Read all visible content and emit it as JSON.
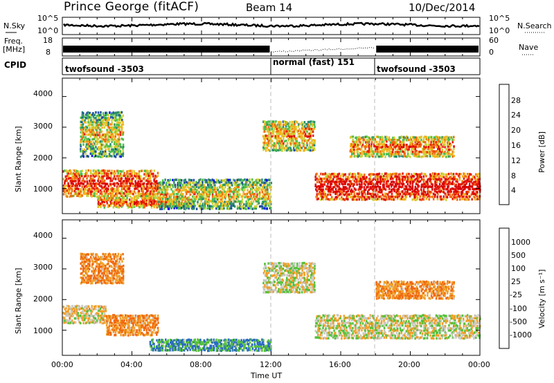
{
  "header": {
    "station": "Prince George (fitACF)",
    "beam": "Beam 14",
    "date": "10/Dec/2014"
  },
  "top_panels": {
    "nsky_label": "N.Sky",
    "nsky_ticks": [
      "10^5",
      "10^0"
    ],
    "nsearch_label": "N.Search",
    "nsearch_ticks": [
      "10^5",
      "10^0"
    ],
    "freq_label_top": "Freq.",
    "freq_label_unit": "[MHz]",
    "freq_ticks": [
      "18",
      "8"
    ],
    "nave_label": "Nave",
    "nave_ticks": [
      "60",
      "0"
    ],
    "cpid_label": "CPID",
    "cpid_segments": [
      {
        "name": "twofsound -3503",
        "start_hour": 0,
        "end_hour": 12
      },
      {
        "name": "normal (fast) 151",
        "start_hour": 12,
        "end_hour": 18
      },
      {
        "name": "twofsound -3503",
        "start_hour": 18,
        "end_hour": 24
      }
    ]
  },
  "power_panel": {
    "ylabel": "Slant Range [km]",
    "yticks": [
      "4000",
      "3000",
      "2000",
      "1000"
    ],
    "colorbar_label": "Power [dB]",
    "colorbar_ticks": [
      "28",
      "24",
      "20",
      "16",
      "12",
      "8",
      "4"
    ],
    "colors": [
      "#0000ff",
      "#1f4ea0",
      "#2e8a6e",
      "#4dbf4d",
      "#c9d23a",
      "#f4b21a",
      "#f06a10",
      "#e81c0c",
      "#d80000"
    ]
  },
  "velocity_panel": {
    "ylabel": "Slant Range [km]",
    "yticks": [
      "4000",
      "3000",
      "2000",
      "1000"
    ],
    "colorbar_label": "Velocity [m s⁻¹]",
    "colorbar_ticks": [
      "1000",
      "500",
      "100",
      "25",
      "-25",
      "-100",
      "-500",
      "-1000"
    ],
    "colors": [
      "#1236b8",
      "#2a6cc0",
      "#1e8a3e",
      "#55c13a",
      "#c8c8c0",
      "#c8c8c0",
      "#f0a02a",
      "#f06a10",
      "#e41a0c"
    ]
  },
  "xaxis": {
    "label": "Time UT",
    "ticks": [
      "00:00",
      "04:00",
      "08:00",
      "12:00",
      "16:00",
      "20:00",
      "00:00"
    ]
  },
  "chart_data": {
    "type": "heatmap",
    "x_unit": "hour UT",
    "xlim": [
      0,
      24
    ],
    "y_unit": "km",
    "ylim": [
      180,
      4600
    ],
    "power_echo_regions": [
      {
        "t": [
          0.0,
          5.5
        ],
        "range": [
          700,
          1600
        ],
        "power_db": 18
      },
      {
        "t": [
          1.0,
          3.5
        ],
        "range": [
          2000,
          3500
        ],
        "power_db": 8
      },
      {
        "t": [
          2.0,
          7.5
        ],
        "range": [
          350,
          700
        ],
        "power_db": 16
      },
      {
        "t": [
          5.5,
          12.0
        ],
        "range": [
          300,
          1300
        ],
        "power_db": 8
      },
      {
        "t": [
          11.5,
          14.5
        ],
        "range": [
          2200,
          3200
        ],
        "power_db": 12
      },
      {
        "t": [
          14.5,
          24.0
        ],
        "range": [
          600,
          1500
        ],
        "power_db": 22
      },
      {
        "t": [
          16.5,
          22.5
        ],
        "range": [
          2000,
          2700
        ],
        "power_db": 14
      }
    ],
    "velocity_echo_regions": [
      {
        "t": [
          0.0,
          2.5
        ],
        "range": [
          1200,
          1800
        ],
        "velocity": -25
      },
      {
        "t": [
          1.0,
          3.5
        ],
        "range": [
          2500,
          3500
        ],
        "velocity": -100
      },
      {
        "t": [
          2.5,
          5.5
        ],
        "range": [
          800,
          1500
        ],
        "velocity": -100
      },
      {
        "t": [
          11.5,
          14.5
        ],
        "range": [
          2200,
          3200
        ],
        "velocity": 0
      },
      {
        "t": [
          14.5,
          24.0
        ],
        "range": [
          700,
          1500
        ],
        "velocity": 0
      },
      {
        "t": [
          18.0,
          22.5
        ],
        "range": [
          2000,
          2600
        ],
        "velocity": -100
      },
      {
        "t": [
          5.0,
          12.0
        ],
        "range": [
          300,
          700
        ],
        "velocity": 100
      }
    ]
  }
}
